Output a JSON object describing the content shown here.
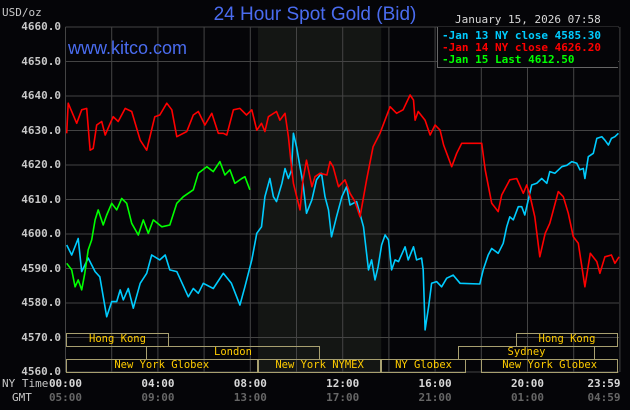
{
  "header": {
    "title": "24 Hour Spot Gold (Bid)",
    "unit": "USD/oz",
    "timestamp": "January 15, 2026 07:58",
    "watermark": "www.kitco.com"
  },
  "axis_row_labels": {
    "ny": "NY Time",
    "gmt": "GMT"
  },
  "colors": {
    "background": "#050508",
    "grid": "#444444",
    "title": "#4a6cf0",
    "session_text": "#ffcc00",
    "session_border": "#a8a070",
    "nymex_shade": "#141614"
  },
  "sessions": [
    {
      "label": "Hong Kong",
      "row": 1,
      "start": "00:00",
      "end": "04:30"
    },
    {
      "label": "Hong Kong",
      "row": 1,
      "start": "19:30",
      "end": "23:59"
    },
    {
      "label": "London",
      "row": 2,
      "start": "03:30",
      "end": "11:00"
    },
    {
      "label": "Sydney",
      "row": 2,
      "start": "17:00",
      "end": "22:55"
    },
    {
      "label": "New York Globex",
      "row": 3,
      "start": "00:00",
      "end": "08:20"
    },
    {
      "label": "New York NYMEX",
      "row": 3,
      "start": "08:20",
      "end": "13:40"
    },
    {
      "label": "NY Globex",
      "row": 3,
      "start": "13:40",
      "end": "17:20"
    },
    {
      "label": "New York Globex",
      "row": 3,
      "start": "18:00",
      "end": "23:59"
    }
  ],
  "chart_data": {
    "type": "line",
    "title": "24 Hour Spot Gold (Bid)",
    "ylabel": "USD/oz",
    "ylim": [
      4560,
      4660
    ],
    "yticks": [
      "4660.0",
      "4650.0",
      "4640.0",
      "4630.0",
      "4620.0",
      "4610.0",
      "4600.0",
      "4590.0",
      "4580.0",
      "4570.0",
      "4560.0"
    ],
    "xticks": [
      "00:00",
      "04:00",
      "08:00",
      "12:00",
      "16:00",
      "20:00",
      "23:59"
    ],
    "xticks_gmt": [
      "05:00",
      "09:00",
      "13:00",
      "17:00",
      "21:00",
      "01:00",
      "04:59"
    ],
    "grid": true,
    "legend_position": "top-right",
    "series": [
      {
        "name": "Jan 13 NY close 4585.30",
        "color": "#00ccff",
        "points": [
          [
            "00:03",
            4596.8
          ],
          [
            "00:16",
            4593.9
          ],
          [
            "00:33",
            4598.7
          ],
          [
            "00:42",
            4589.1
          ],
          [
            "00:59",
            4593.0
          ],
          [
            "01:17",
            4589.1
          ],
          [
            "01:29",
            4587.6
          ],
          [
            "01:47",
            4576.0
          ],
          [
            "02:00",
            4580.4
          ],
          [
            "02:13",
            4580.4
          ],
          [
            "02:22",
            4583.8
          ],
          [
            "02:30",
            4580.9
          ],
          [
            "02:43",
            4584.2
          ],
          [
            "02:56",
            4578.5
          ],
          [
            "03:14",
            4585.7
          ],
          [
            "03:31",
            4588.6
          ],
          [
            "03:44",
            4593.9
          ],
          [
            "04:05",
            4592.5
          ],
          [
            "04:19",
            4593.9
          ],
          [
            "04:31",
            4589.6
          ],
          [
            "04:49",
            4589.1
          ],
          [
            "05:19",
            4581.8
          ],
          [
            "05:32",
            4584.2
          ],
          [
            "05:45",
            4582.8
          ],
          [
            "05:58",
            4585.7
          ],
          [
            "06:24",
            4584.2
          ],
          [
            "06:50",
            4588.6
          ],
          [
            "07:11",
            4585.7
          ],
          [
            "07:33",
            4579.4
          ],
          [
            "07:46",
            4584.7
          ],
          [
            "08:04",
            4592.5
          ],
          [
            "08:17",
            4600.2
          ],
          [
            "08:29",
            4602.1
          ],
          [
            "08:38",
            4610.8
          ],
          [
            "08:51",
            4616.1
          ],
          [
            "09:00",
            4610.8
          ],
          [
            "09:08",
            4609.4
          ],
          [
            "09:22",
            4614.7
          ],
          [
            "09:30",
            4619.0
          ],
          [
            "09:39",
            4616.1
          ],
          [
            "09:47",
            4618.5
          ],
          [
            "09:52",
            4629.2
          ],
          [
            "10:00",
            4625.3
          ],
          [
            "10:09",
            4619.5
          ],
          [
            "10:17",
            4614.7
          ],
          [
            "10:26",
            4606.0
          ],
          [
            "10:40",
            4609.9
          ],
          [
            "10:52",
            4615.7
          ],
          [
            "11:05",
            4617.6
          ],
          [
            "11:14",
            4610.8
          ],
          [
            "11:23",
            4607.0
          ],
          [
            "11:31",
            4599.2
          ],
          [
            "11:44",
            4605.0
          ],
          [
            "11:58",
            4610.8
          ],
          [
            "12:10",
            4613.7
          ],
          [
            "12:19",
            4608.4
          ],
          [
            "12:36",
            4609.4
          ],
          [
            "12:54",
            4602.1
          ],
          [
            "13:07",
            4589.6
          ],
          [
            "13:15",
            4592.5
          ],
          [
            "13:24",
            4586.7
          ],
          [
            "13:32",
            4590.5
          ],
          [
            "13:41",
            4596.8
          ],
          [
            "13:50",
            4599.7
          ],
          [
            "13:59",
            4598.3
          ],
          [
            "14:07",
            4589.6
          ],
          [
            "14:16",
            4592.5
          ],
          [
            "14:25",
            4592.0
          ],
          [
            "14:42",
            4596.3
          ],
          [
            "14:50",
            4592.5
          ],
          [
            "15:04",
            4596.3
          ],
          [
            "15:12",
            4592.5
          ],
          [
            "15:25",
            4593.0
          ],
          [
            "15:29",
            4589.6
          ],
          [
            "15:34",
            4572.2
          ],
          [
            "15:43",
            4578.9
          ],
          [
            "15:51",
            4585.7
          ],
          [
            "16:04",
            4586.2
          ],
          [
            "16:17",
            4584.7
          ],
          [
            "16:30",
            4587.2
          ],
          [
            "16:47",
            4588.1
          ],
          [
            "17:05",
            4585.7
          ],
          [
            "17:56",
            4585.5
          ],
          [
            "18:05",
            4589.6
          ],
          [
            "18:18",
            4593.9
          ],
          [
            "18:27",
            4595.8
          ],
          [
            "18:44",
            4594.4
          ],
          [
            "18:57",
            4597.3
          ],
          [
            "19:06",
            4602.1
          ],
          [
            "19:14",
            4605.0
          ],
          [
            "19:23",
            4604.1
          ],
          [
            "19:36",
            4607.9
          ],
          [
            "19:45",
            4607.9
          ],
          [
            "19:53",
            4605.5
          ],
          [
            "20:02",
            4609.9
          ],
          [
            "20:11",
            4614.2
          ],
          [
            "20:24",
            4614.7
          ],
          [
            "20:37",
            4616.1
          ],
          [
            "20:50",
            4614.7
          ],
          [
            "20:58",
            4618.1
          ],
          [
            "21:11",
            4617.6
          ],
          [
            "21:29",
            4619.5
          ],
          [
            "21:42",
            4619.9
          ],
          [
            "21:55",
            4621.0
          ],
          [
            "22:08",
            4620.5
          ],
          [
            "22:16",
            4618.6
          ],
          [
            "22:25",
            4619.0
          ],
          [
            "22:29",
            4616.1
          ],
          [
            "22:38",
            4622.4
          ],
          [
            "22:51",
            4623.4
          ],
          [
            "23:00",
            4627.7
          ],
          [
            "23:13",
            4628.2
          ],
          [
            "23:21",
            4627.2
          ],
          [
            "23:30",
            4625.8
          ],
          [
            "23:38",
            4627.7
          ],
          [
            "23:47",
            4628.2
          ],
          [
            "23:56",
            4629.2
          ]
        ]
      },
      {
        "name": "Jan 14 NY close 4626.20",
        "color": "#ff0000",
        "points": [
          [
            "00:03",
            4629.2
          ],
          [
            "00:07",
            4637.9
          ],
          [
            "00:29",
            4632.1
          ],
          [
            "00:42",
            4636.0
          ],
          [
            "00:55",
            4636.4
          ],
          [
            "01:04",
            4624.3
          ],
          [
            "01:12",
            4624.8
          ],
          [
            "01:21",
            4631.6
          ],
          [
            "01:34",
            4632.6
          ],
          [
            "01:43",
            4628.7
          ],
          [
            "01:56",
            4632.1
          ],
          [
            "02:04",
            4634.0
          ],
          [
            "02:17",
            4632.6
          ],
          [
            "02:35",
            4636.4
          ],
          [
            "02:52",
            4635.5
          ],
          [
            "03:14",
            4627.2
          ],
          [
            "03:31",
            4624.3
          ],
          [
            "03:52",
            4634.0
          ],
          [
            "04:05",
            4634.5
          ],
          [
            "04:23",
            4637.9
          ],
          [
            "04:36",
            4636.0
          ],
          [
            "04:49",
            4628.2
          ],
          [
            "05:15",
            4629.7
          ],
          [
            "05:32",
            4634.5
          ],
          [
            "05:45",
            4635.5
          ],
          [
            "06:02",
            4631.6
          ],
          [
            "06:20",
            4635.0
          ],
          [
            "06:37",
            4629.2
          ],
          [
            "06:50",
            4629.2
          ],
          [
            "06:59",
            4628.7
          ],
          [
            "07:16",
            4636.0
          ],
          [
            "07:33",
            4636.4
          ],
          [
            "07:50",
            4634.5
          ],
          [
            "08:04",
            4636.0
          ],
          [
            "08:17",
            4630.1
          ],
          [
            "08:29",
            4632.1
          ],
          [
            "08:38",
            4629.7
          ],
          [
            "08:47",
            4634.0
          ],
          [
            "09:08",
            4635.5
          ],
          [
            "09:17",
            4633.0
          ],
          [
            "09:30",
            4635.0
          ],
          [
            "09:39",
            4628.2
          ],
          [
            "09:47",
            4619.5
          ],
          [
            "09:52",
            4614.7
          ],
          [
            "10:09",
            4607.0
          ],
          [
            "10:17",
            4615.7
          ],
          [
            "10:26",
            4621.4
          ],
          [
            "10:40",
            4613.7
          ],
          [
            "10:48",
            4616.6
          ],
          [
            "11:01",
            4617.6
          ],
          [
            "11:19",
            4617.1
          ],
          [
            "11:27",
            4621.0
          ],
          [
            "11:35",
            4619.5
          ],
          [
            "11:49",
            4613.7
          ],
          [
            "12:06",
            4615.7
          ],
          [
            "12:19",
            4611.8
          ],
          [
            "12:32",
            4609.4
          ],
          [
            "12:45",
            4605.0
          ],
          [
            "13:02",
            4615.7
          ],
          [
            "13:19",
            4625.3
          ],
          [
            "13:37",
            4629.2
          ],
          [
            "14:03",
            4636.9
          ],
          [
            "14:20",
            4635.0
          ],
          [
            "14:37",
            4636.0
          ],
          [
            "14:55",
            4640.3
          ],
          [
            "15:04",
            4638.8
          ],
          [
            "15:08",
            4633.0
          ],
          [
            "15:16",
            4635.5
          ],
          [
            "15:34",
            4633.0
          ],
          [
            "15:47",
            4628.7
          ],
          [
            "16:00",
            4631.6
          ],
          [
            "16:13",
            4630.1
          ],
          [
            "16:22",
            4625.8
          ],
          [
            "16:43",
            4619.5
          ],
          [
            "16:56",
            4623.4
          ],
          [
            "17:09",
            4626.3
          ],
          [
            "18:01",
            4626.3
          ],
          [
            "18:10",
            4618.6
          ],
          [
            "18:27",
            4608.9
          ],
          [
            "18:44",
            4606.5
          ],
          [
            "18:53",
            4611.3
          ],
          [
            "19:14",
            4615.7
          ],
          [
            "19:32",
            4616.1
          ],
          [
            "19:49",
            4611.8
          ],
          [
            "19:58",
            4614.2
          ],
          [
            "20:07",
            4610.8
          ],
          [
            "20:19",
            4605.0
          ],
          [
            "20:32",
            4593.4
          ],
          [
            "20:46",
            4600.2
          ],
          [
            "20:58",
            4603.1
          ],
          [
            "21:20",
            4612.3
          ],
          [
            "21:33",
            4610.8
          ],
          [
            "21:46",
            4606.0
          ],
          [
            "21:59",
            4599.2
          ],
          [
            "22:12",
            4597.3
          ],
          [
            "22:29",
            4584.7
          ],
          [
            "22:43",
            4594.4
          ],
          [
            "23:00",
            4592.0
          ],
          [
            "23:08",
            4588.6
          ],
          [
            "23:21",
            4593.4
          ],
          [
            "23:38",
            4593.9
          ],
          [
            "23:47",
            4591.5
          ],
          [
            "23:58",
            4593.4
          ]
        ]
      },
      {
        "name": "Jan 15 Last 4612.50",
        "color": "#00ff00",
        "points": [
          [
            "00:03",
            4591.5
          ],
          [
            "00:16",
            4589.6
          ],
          [
            "00:25",
            4584.7
          ],
          [
            "00:33",
            4586.7
          ],
          [
            "00:42",
            4583.8
          ],
          [
            "00:50",
            4588.6
          ],
          [
            "00:59",
            4595.4
          ],
          [
            "01:08",
            4598.3
          ],
          [
            "01:17",
            4604.1
          ],
          [
            "01:25",
            4607.0
          ],
          [
            "01:38",
            4602.6
          ],
          [
            "01:47",
            4605.5
          ],
          [
            "02:00",
            4608.9
          ],
          [
            "02:13",
            4607.0
          ],
          [
            "02:26",
            4610.3
          ],
          [
            "02:39",
            4608.9
          ],
          [
            "02:52",
            4603.1
          ],
          [
            "03:09",
            4599.7
          ],
          [
            "03:22",
            4604.1
          ],
          [
            "03:35",
            4600.2
          ],
          [
            "03:48",
            4604.1
          ],
          [
            "04:10",
            4602.1
          ],
          [
            "04:31",
            4602.6
          ],
          [
            "04:49",
            4608.9
          ],
          [
            "05:06",
            4610.8
          ],
          [
            "05:32",
            4612.8
          ],
          [
            "05:45",
            4617.6
          ],
          [
            "06:07",
            4619.5
          ],
          [
            "06:24",
            4618.1
          ],
          [
            "06:41",
            4621.0
          ],
          [
            "06:54",
            4617.1
          ],
          [
            "07:07",
            4618.6
          ],
          [
            "07:20",
            4614.7
          ],
          [
            "07:38",
            4616.1
          ],
          [
            "07:46",
            4616.6
          ],
          [
            "07:59",
            4612.8
          ]
        ]
      }
    ]
  }
}
